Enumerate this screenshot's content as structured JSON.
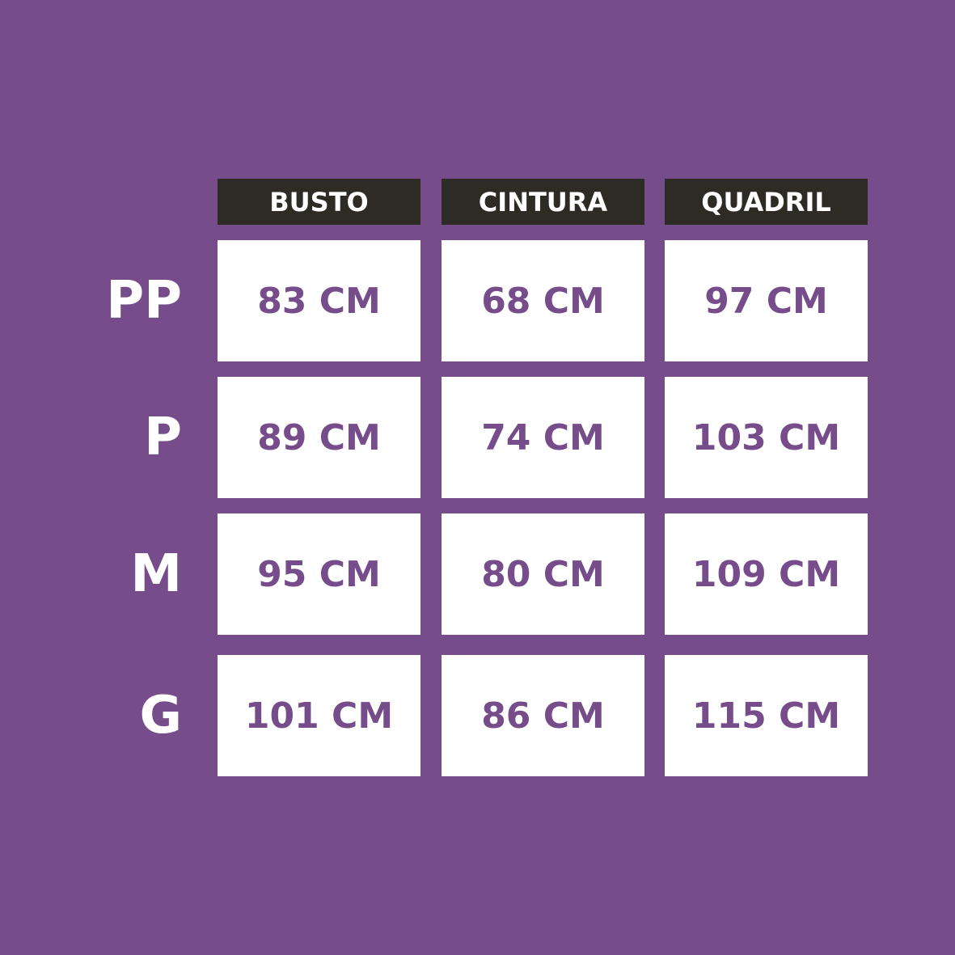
{
  "colors": {
    "background": "#764c8a",
    "header": "#2e2a24",
    "value_text": "#764c8a"
  },
  "columns": [
    "BUSTO",
    "CINTURA",
    "QUADRIL"
  ],
  "rows": [
    {
      "size": "PP",
      "values": [
        "83 CM",
        "68 CM",
        "97 CM"
      ]
    },
    {
      "size": "P",
      "values": [
        "89 CM",
        "74 CM",
        "103 CM"
      ]
    },
    {
      "size": "M",
      "values": [
        "95 CM",
        "80 CM",
        "109 CM"
      ]
    },
    {
      "size": "G",
      "values": [
        "101 CM",
        "86 CM",
        "115 CM"
      ]
    }
  ]
}
